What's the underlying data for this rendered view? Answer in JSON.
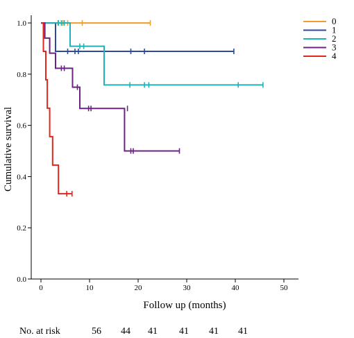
{
  "chart_data": {
    "type": "line",
    "subtype": "kaplan-meier",
    "xlabel": "Follow up (months)",
    "ylabel": "Cumulative survival",
    "xlim": [
      -2,
      53
    ],
    "ylim": [
      0,
      1.03
    ],
    "xticks": [
      0,
      10,
      20,
      30,
      40,
      50
    ],
    "yticks": [
      0.0,
      0.2,
      0.4,
      0.6,
      0.8,
      1.0
    ],
    "x_tick_labels": [
      "0",
      "10",
      "20",
      "30",
      "40",
      "50"
    ],
    "y_tick_labels": [
      "0.0",
      "0.2",
      "0.4",
      "0.6",
      "0.8",
      "1.0"
    ],
    "grid": false,
    "legend_position": "right-top",
    "series": [
      {
        "name": "0",
        "color": "#f39c2a",
        "steps": [
          [
            0,
            1.0
          ],
          [
            22.5,
            1.0
          ]
        ],
        "censored": [
          [
            3.5,
            1.0
          ],
          [
            4.5,
            1.0
          ],
          [
            5.5,
            1.0
          ],
          [
            8.5,
            1.0
          ],
          [
            22.5,
            1.0
          ]
        ]
      },
      {
        "name": "1",
        "color": "#2b4a9c",
        "steps": [
          [
            0,
            1.0
          ],
          [
            3.0,
            1.0
          ],
          [
            3.0,
            0.889
          ],
          [
            39.7,
            0.889
          ]
        ],
        "censored": [
          [
            5.5,
            0.889
          ],
          [
            7.0,
            0.889
          ],
          [
            7.7,
            0.889
          ],
          [
            18.5,
            0.889
          ],
          [
            21.3,
            0.889
          ],
          [
            39.7,
            0.889
          ]
        ]
      },
      {
        "name": "2",
        "color": "#1fb3b8",
        "steps": [
          [
            0,
            1.0
          ],
          [
            6.0,
            1.0
          ],
          [
            6.0,
            0.909
          ],
          [
            13.0,
            0.909
          ],
          [
            13.0,
            0.758
          ],
          [
            45.7,
            0.758
          ]
        ],
        "censored": [
          [
            3.6,
            1.0
          ],
          [
            4.2,
            1.0
          ],
          [
            4.8,
            1.0
          ],
          [
            8.0,
            0.909
          ],
          [
            8.8,
            0.909
          ],
          [
            18.3,
            0.758
          ],
          [
            21.3,
            0.758
          ],
          [
            22.2,
            0.758
          ],
          [
            40.6,
            0.758
          ],
          [
            45.7,
            0.758
          ]
        ]
      },
      {
        "name": "3",
        "color": "#6b2580",
        "steps": [
          [
            0,
            1.0
          ],
          [
            0.8,
            1.0
          ],
          [
            0.8,
            0.941
          ],
          [
            1.8,
            0.941
          ],
          [
            1.8,
            0.882
          ],
          [
            3.0,
            0.882
          ],
          [
            3.0,
            0.823
          ],
          [
            6.5,
            0.823
          ],
          [
            6.5,
            0.749
          ],
          [
            8.0,
            0.749
          ],
          [
            8.0,
            0.666
          ],
          [
            17.2,
            0.666
          ],
          [
            17.2,
            0.5
          ],
          [
            28.5,
            0.5
          ]
        ],
        "censored": [
          [
            4.2,
            0.823
          ],
          [
            4.8,
            0.823
          ],
          [
            7.5,
            0.749
          ],
          [
            9.8,
            0.666
          ],
          [
            10.3,
            0.666
          ],
          [
            17.8,
            0.666
          ],
          [
            18.5,
            0.5
          ],
          [
            19.0,
            0.5
          ],
          [
            28.5,
            0.5
          ]
        ]
      },
      {
        "name": "4",
        "color": "#e3261d",
        "steps": [
          [
            0,
            1.0
          ],
          [
            0.5,
            1.0
          ],
          [
            0.5,
            0.889
          ],
          [
            1.0,
            0.889
          ],
          [
            1.0,
            0.778
          ],
          [
            1.3,
            0.778
          ],
          [
            1.3,
            0.667
          ],
          [
            1.8,
            0.667
          ],
          [
            1.8,
            0.556
          ],
          [
            2.4,
            0.556
          ],
          [
            2.4,
            0.445
          ],
          [
            3.6,
            0.445
          ],
          [
            3.6,
            0.333
          ],
          [
            6.4,
            0.333
          ]
        ],
        "censored": [
          [
            5.3,
            0.333
          ],
          [
            6.4,
            0.333
          ]
        ]
      }
    ]
  },
  "risk_table": {
    "label": "No. at risk",
    "counts": [
      "56",
      "44",
      "41",
      "41",
      "41",
      "41"
    ]
  }
}
